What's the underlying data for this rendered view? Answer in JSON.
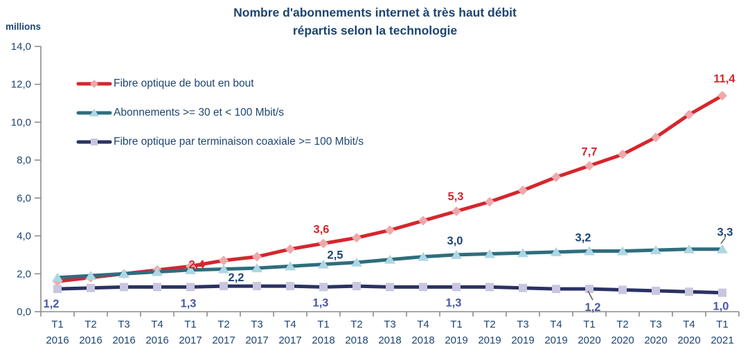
{
  "chart_data": {
    "type": "line",
    "title_line1": "Nombre d'abonnements internet à très haut débit",
    "title_line2": "répartis selon la technologie",
    "unit_label": "millions",
    "ylim": [
      0,
      14
    ],
    "ytick_values": [
      0,
      2,
      4,
      6,
      8,
      10,
      12,
      14
    ],
    "ytick_labels": [
      "0,0",
      "2,0",
      "4,0",
      "6,0",
      "8,0",
      "10,0",
      "12,0",
      "14,0"
    ],
    "x_quarters": [
      "T1",
      "T2",
      "T3",
      "T4",
      "T1",
      "T2",
      "T3",
      "T4",
      "T1",
      "T2",
      "T3",
      "T4",
      "T1",
      "T2",
      "T3",
      "T4",
      "T1",
      "T2",
      "T3",
      "T4",
      "T1"
    ],
    "x_years": [
      "2016",
      "2016",
      "2016",
      "2016",
      "2017",
      "2017",
      "2017",
      "2017",
      "2018",
      "2018",
      "2018",
      "2018",
      "2019",
      "2019",
      "2019",
      "2019",
      "2020",
      "2020",
      "2020",
      "2020",
      "2021"
    ],
    "legend_position": "top-left-inside",
    "grid": false,
    "axis_color": "#8c8c8c",
    "series": [
      {
        "name": "Fibre optique de bout en bout",
        "color": "#d5262d",
        "marker": "diamond",
        "marker_color": "#efa8ab",
        "label_color": "#d5262d",
        "values": [
          1.6,
          1.8,
          2.0,
          2.2,
          2.4,
          2.7,
          2.9,
          3.3,
          3.6,
          3.9,
          4.3,
          4.8,
          5.3,
          5.8,
          6.4,
          7.1,
          7.7,
          8.3,
          9.2,
          10.4,
          11.4
        ],
        "point_labels": [
          {
            "index": 4,
            "text": "2,4",
            "dx": 9,
            "dy": 3
          },
          {
            "index": 8,
            "text": "3,6",
            "dx": -3,
            "dy": -15
          },
          {
            "index": 12,
            "text": "5,3",
            "dx": -1,
            "dy": -16
          },
          {
            "index": 16,
            "text": "7,7",
            "dx": 0,
            "dy": -15
          },
          {
            "index": 20,
            "text": "11,4",
            "dx": 3,
            "dy": -19
          }
        ]
      },
      {
        "name": "Abonnements >= 30 et < 100 Mbit/s",
        "color": "#2f6d7e",
        "marker": "triangle",
        "marker_color": "#aed6e3",
        "label_color": "#1d4472",
        "values": [
          1.8,
          1.9,
          2.0,
          2.1,
          2.2,
          2.25,
          2.3,
          2.4,
          2.5,
          2.6,
          2.75,
          2.9,
          3.0,
          3.05,
          3.1,
          3.15,
          3.2,
          3.2,
          3.25,
          3.3,
          3.3
        ],
        "point_labels": [
          {
            "index": 4,
            "text": "2,2",
            "dx": 66,
            "dy": 16
          },
          {
            "index": 8,
            "text": "2,5",
            "dx": 17,
            "dy": -8
          },
          {
            "index": 12,
            "text": "3,0",
            "dx": -2,
            "dy": -15
          },
          {
            "index": 16,
            "text": "3,2",
            "dx": -9,
            "dy": -14
          },
          {
            "index": 20,
            "text": "3,3",
            "dx": 4,
            "dy": -19,
            "leader": [
              -2,
              -8,
              4,
              -16
            ]
          }
        ]
      },
      {
        "name": "Fibre optique par terminaison coaxiale >= 100 Mbit/s",
        "color": "#2b3263",
        "marker": "square",
        "marker_color": "#c9c6df",
        "label_color": "#4c58a6",
        "values": [
          1.2,
          1.25,
          1.3,
          1.3,
          1.3,
          1.35,
          1.35,
          1.35,
          1.3,
          1.35,
          1.3,
          1.3,
          1.3,
          1.3,
          1.25,
          1.2,
          1.2,
          1.15,
          1.1,
          1.05,
          1.0
        ],
        "point_labels": [
          {
            "index": 0,
            "text": "1,2",
            "dx": -9,
            "dy": 27
          },
          {
            "index": 4,
            "text": "1,3",
            "dx": -3,
            "dy": 29
          },
          {
            "index": 8,
            "text": "1,3",
            "dx": -4,
            "dy": 28
          },
          {
            "index": 12,
            "text": "1,3",
            "dx": -4,
            "dy": 28
          },
          {
            "index": 16,
            "text": "1,2",
            "dx": 5,
            "dy": 32,
            "leader": [
              -2,
              3,
              5,
              16
            ]
          },
          {
            "index": 20,
            "text": "1,0",
            "dx": -2,
            "dy": 25
          }
        ]
      }
    ]
  }
}
